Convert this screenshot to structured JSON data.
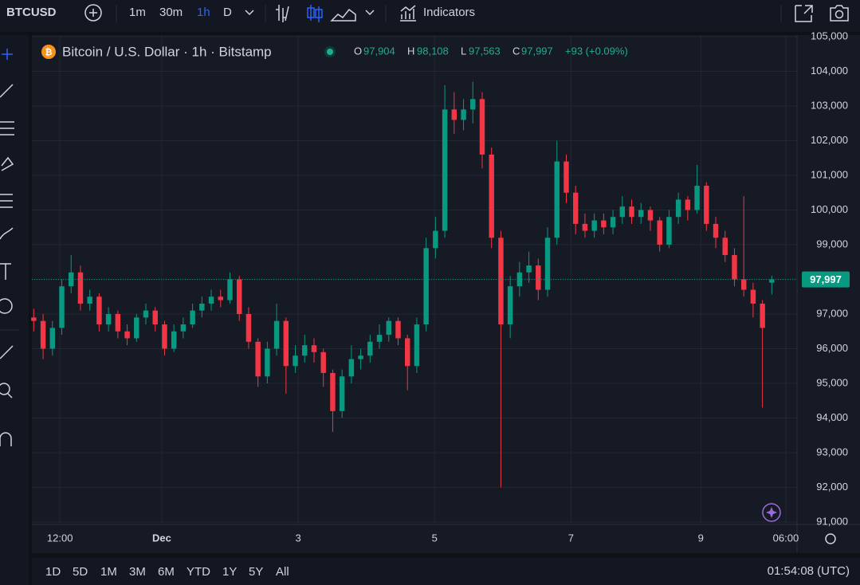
{
  "toolbar": {
    "symbol": "BTCUSD",
    "intervals": [
      "1m",
      "30m",
      "1h",
      "D"
    ],
    "indicators": "Indicators"
  },
  "legend": {
    "title": "Bitcoin / U.S. Dollar · 1h · Bitstamp",
    "o_key": "O",
    "o": "97,904",
    "h_key": "H",
    "h": "98,108",
    "l_key": "L",
    "l": "97,563",
    "c_key": "C",
    "c": "97,997",
    "change": "+93 (+0.09%)"
  },
  "bottom_bar": {
    "ranges": [
      "1D",
      "5D",
      "1M",
      "3M",
      "6M",
      "YTD",
      "1Y",
      "5Y",
      "All"
    ],
    "clock": "01:54:08 (UTC)"
  },
  "chart_data": {
    "type": "candlestick",
    "up_color": "#089981",
    "down_color": "#f23645",
    "open": [
      96900,
      96800,
      96000,
      96600,
      97800,
      98200,
      97300,
      97500,
      96700,
      97000,
      96500,
      96300,
      96900,
      97100,
      96700,
      96000,
      96500,
      96700,
      97100,
      97300,
      97500,
      97400,
      98000,
      97000,
      96200,
      95200,
      96000,
      96800,
      95500,
      95800,
      96100,
      95900,
      95300,
      94200,
      95200,
      95700,
      95800,
      96200,
      96400,
      96800,
      96300,
      95500,
      96700,
      98900,
      99400,
      102900,
      102600,
      102900,
      103200,
      101600,
      99200,
      96700,
      97800,
      98200,
      98400,
      97700,
      99200,
      101400,
      100500,
      99600,
      99400,
      99700,
      99500,
      99800,
      100100,
      99800,
      100000,
      99700,
      99000,
      99800,
      100300,
      100000,
      100700,
      99600,
      99200,
      98700,
      98000,
      97700,
      97300,
      97904
    ],
    "high": [
      97150,
      97000,
      96800,
      98000,
      98700,
      98400,
      97700,
      97600,
      97200,
      97100,
      96700,
      97000,
      97300,
      97200,
      96800,
      96700,
      96900,
      97300,
      97500,
      97700,
      97700,
      98200,
      98100,
      97200,
      96300,
      96200,
      97300,
      96900,
      96100,
      96400,
      96300,
      96000,
      95400,
      95400,
      96100,
      96000,
      96400,
      96700,
      96900,
      96900,
      96400,
      96900,
      99200,
      99800,
      103600,
      103400,
      103200,
      103700,
      103400,
      101800,
      99400,
      98100,
      98500,
      98800,
      98600,
      99500,
      102000,
      101600,
      100700,
      99900,
      99900,
      99900,
      100000,
      100400,
      100300,
      100200,
      100100,
      99800,
      100000,
      100500,
      100400,
      101300,
      100800,
      99800,
      99400,
      98900,
      100400,
      97900,
      97400,
      98108
    ],
    "low": [
      96500,
      95700,
      95800,
      96400,
      97600,
      97100,
      97100,
      96500,
      96500,
      96300,
      96100,
      96200,
      96700,
      96500,
      95800,
      95900,
      96300,
      96600,
      96900,
      97100,
      97200,
      97300,
      96800,
      96000,
      94900,
      95000,
      95800,
      94700,
      95300,
      95600,
      95600,
      94900,
      93600,
      94000,
      95000,
      95400,
      95600,
      96000,
      96200,
      96100,
      94800,
      95300,
      96500,
      98600,
      99200,
      102200,
      102300,
      102500,
      101200,
      98900,
      92000,
      96300,
      97500,
      97900,
      97400,
      97500,
      99000,
      100200,
      99300,
      99200,
      99200,
      99300,
      99300,
      99600,
      99600,
      99600,
      99400,
      98800,
      98900,
      99600,
      99700,
      99900,
      99400,
      98900,
      98500,
      97800,
      97500,
      96900,
      94300,
      97563
    ],
    "close": [
      96800,
      96000,
      96600,
      97800,
      98200,
      97300,
      97500,
      96700,
      97000,
      96500,
      96300,
      96900,
      97100,
      96700,
      96000,
      96500,
      96700,
      97100,
      97300,
      97500,
      97400,
      98000,
      97000,
      96200,
      95200,
      96000,
      96800,
      95500,
      95800,
      96100,
      95900,
      95300,
      94200,
      95200,
      95700,
      95800,
      96200,
      96400,
      96800,
      96300,
      95500,
      96700,
      98900,
      99400,
      102900,
      102600,
      102900,
      103200,
      101600,
      99200,
      96700,
      97800,
      98200,
      98400,
      97700,
      99200,
      101400,
      100500,
      99600,
      99400,
      99700,
      99500,
      99800,
      100100,
      99800,
      100000,
      99700,
      99000,
      99800,
      100300,
      100000,
      100700,
      99600,
      99200,
      98700,
      98000,
      97700,
      97300,
      96600,
      97997
    ],
    "last_label": "97,997",
    "ylim": [
      91000,
      105000
    ],
    "yticks": [
      {
        "value": 91000,
        "label": "91,000"
      },
      {
        "value": 92000,
        "label": "92,000"
      },
      {
        "value": 93000,
        "label": "93,000"
      },
      {
        "value": 94000,
        "label": "94,000"
      },
      {
        "value": 95000,
        "label": "95,000"
      },
      {
        "value": 96000,
        "label": "96,000"
      },
      {
        "value": 97000,
        "label": "97,000"
      },
      {
        "value": 98000,
        "label": "98,000"
      },
      {
        "value": 99000,
        "label": "99,000"
      },
      {
        "value": 100000,
        "label": "100,000"
      },
      {
        "value": 101000,
        "label": "101,000"
      },
      {
        "value": 102000,
        "label": "102,000"
      },
      {
        "value": 103000,
        "label": "103,000"
      },
      {
        "value": 104000,
        "label": "104,000"
      },
      {
        "value": 105000,
        "label": "105,000"
      }
    ],
    "xlim": [
      -0.2,
      81.7
    ],
    "xticks": [
      {
        "value": 2.8,
        "label": "12:00"
      },
      {
        "value": 13.7,
        "label": "Dec"
      },
      {
        "value": 28.3,
        "label": "3"
      },
      {
        "value": 42.9,
        "label": "5"
      },
      {
        "value": 57.5,
        "label": "7"
      },
      {
        "value": 71.4,
        "label": "9"
      },
      {
        "value": 80.5,
        "label": "06:00"
      }
    ],
    "grid": true
  }
}
